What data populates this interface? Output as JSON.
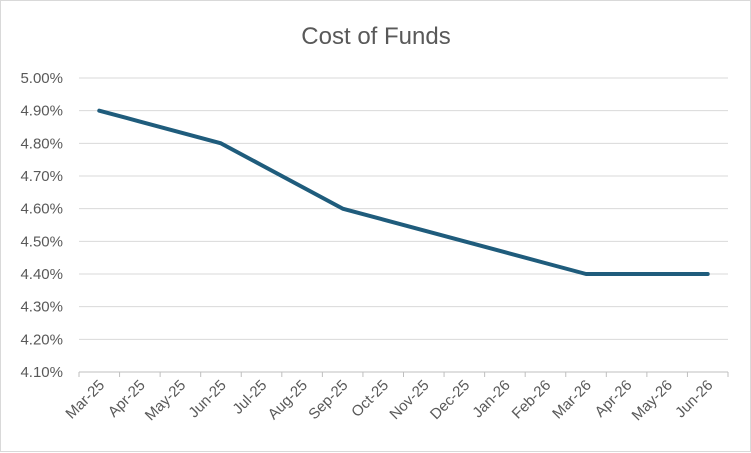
{
  "chart_data": {
    "type": "line",
    "title": "Cost of Funds",
    "xlabel": "",
    "ylabel": "",
    "categories": [
      "Mar-25",
      "Apr-25",
      "May-25",
      "Jun-25",
      "Jul-25",
      "Aug-25",
      "Sep-25",
      "Oct-25",
      "Nov-25",
      "Dec-25",
      "Jan-26",
      "Feb-26",
      "Mar-26",
      "Apr-26",
      "May-26",
      "Jun-26"
    ],
    "series": [
      {
        "values": [
          4.9,
          4.8667,
          4.8333,
          4.8,
          4.7333,
          4.6667,
          4.6,
          4.5667,
          4.5333,
          4.5,
          4.4667,
          4.4333,
          4.4,
          4.4,
          4.4,
          4.4
        ],
        "color": "#1f5c7c"
      }
    ],
    "ylim": [
      4.1,
      5.0
    ],
    "yticks": [
      "4.10%",
      "4.20%",
      "4.30%",
      "4.40%",
      "4.50%",
      "4.60%",
      "4.70%",
      "4.80%",
      "4.90%",
      "5.00%"
    ],
    "y_format": "percent",
    "grid": "horizontal",
    "legend": "none"
  },
  "colors": {
    "line": "#1f5c7c",
    "gridline": "#d9d9d9",
    "text": "#595959"
  }
}
